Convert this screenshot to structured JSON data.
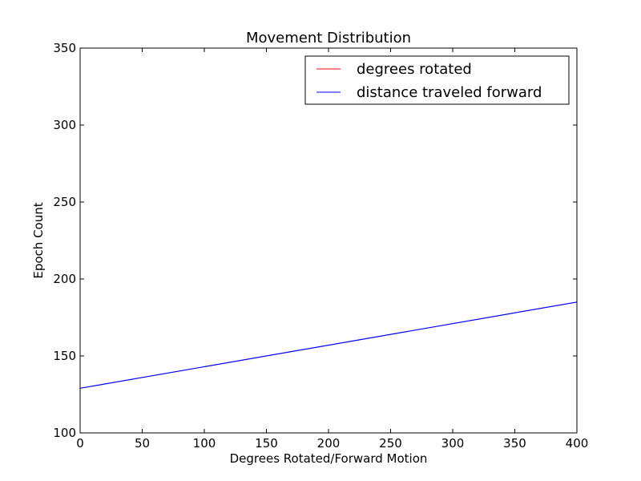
{
  "chart_data": {
    "type": "line",
    "title": "Movement Distribution",
    "xlabel": "Degrees Rotated/Forward Motion",
    "ylabel": "Epoch Count",
    "xlim": [
      0,
      400
    ],
    "ylim": [
      100,
      350
    ],
    "xticks": [
      0,
      50,
      100,
      150,
      200,
      250,
      300,
      350,
      400
    ],
    "yticks": [
      100,
      150,
      200,
      250,
      300,
      350
    ],
    "grid": false,
    "legend_position": "top-right",
    "series": [
      {
        "name": "degrees rotated",
        "color": "#ff0000",
        "x": [],
        "y": []
      },
      {
        "name": "distance traveled forward",
        "color": "#0000ff",
        "x": [
          0,
          400
        ],
        "y": [
          129,
          185
        ]
      }
    ]
  }
}
